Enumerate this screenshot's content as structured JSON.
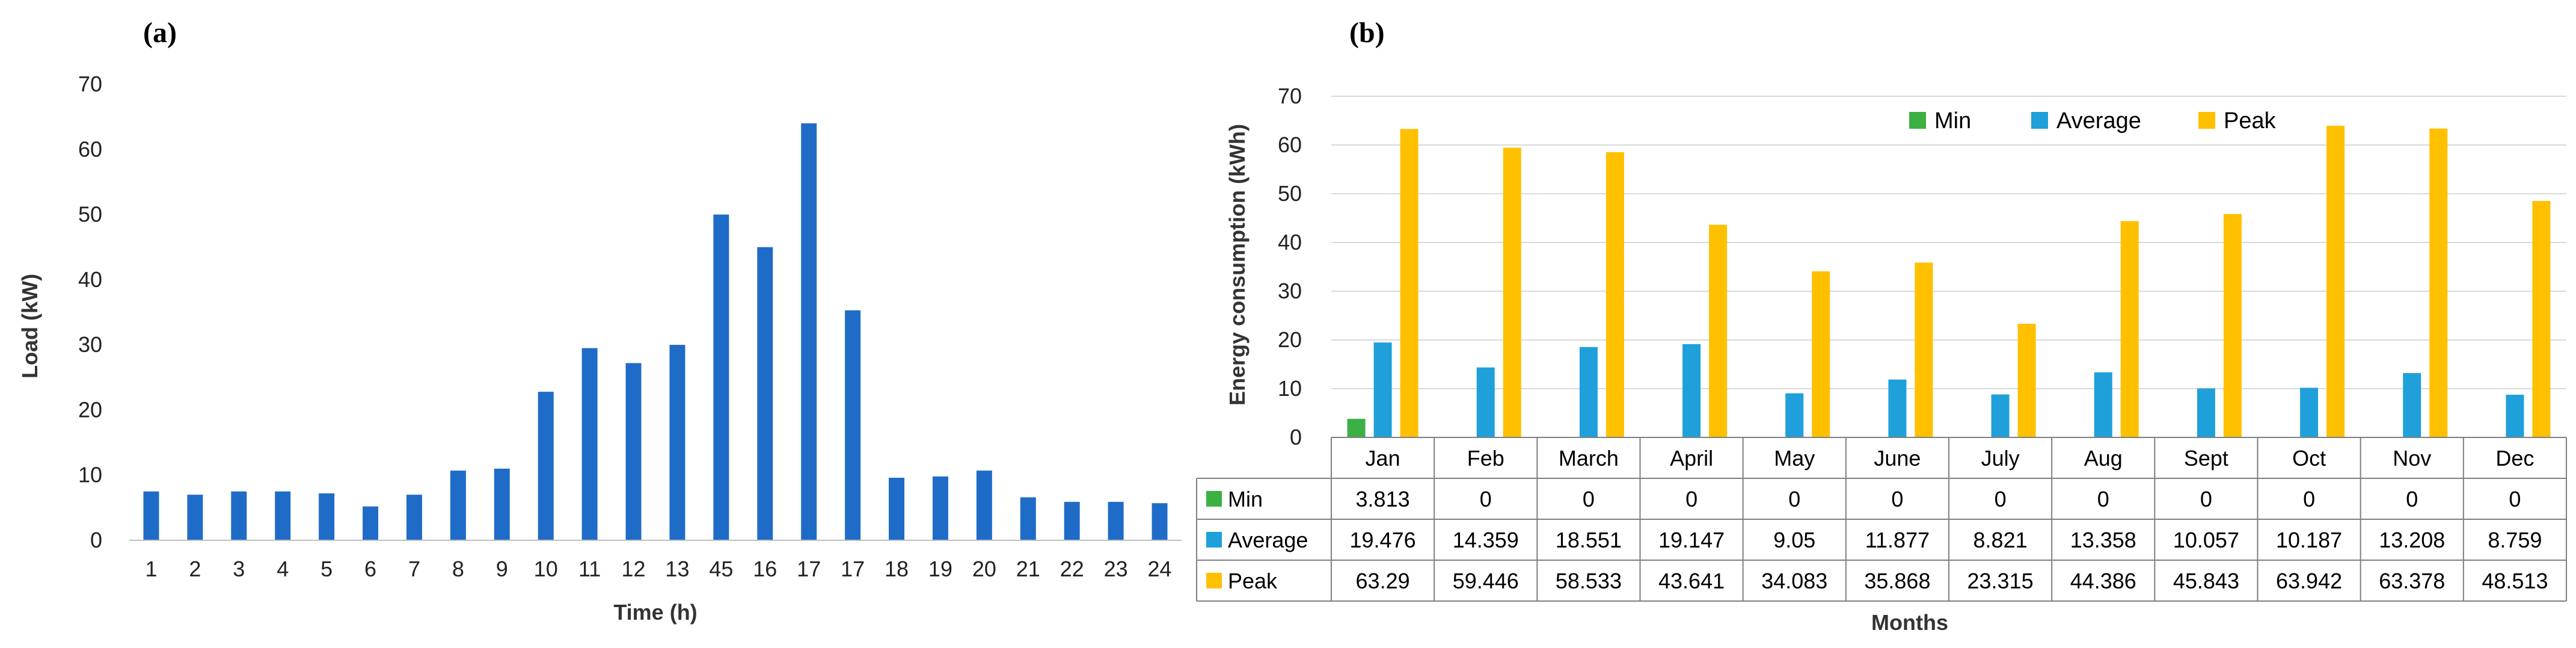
{
  "chart_data": [
    {
      "panel_label": "(a)",
      "type": "bar",
      "title": "",
      "xlabel": "Time (h)",
      "ylabel": "Load (kW)",
      "ylim": [
        0,
        70
      ],
      "yticks": [
        0,
        10,
        20,
        30,
        40,
        50,
        60,
        70
      ],
      "grid": false,
      "categories": [
        "1",
        "2",
        "3",
        "4",
        "5",
        "6",
        "7",
        "8",
        "9",
        "10",
        "11",
        "12",
        "13",
        "45",
        "16",
        "17",
        "17",
        "18",
        "19",
        "20",
        "21",
        "22",
        "23",
        "24"
      ],
      "values": [
        7.5,
        7,
        7.5,
        7.5,
        7.2,
        5.2,
        7,
        10.7,
        11,
        22.8,
        29.5,
        27.2,
        30,
        50,
        45,
        64,
        35.3,
        9.6,
        9.8,
        10.7,
        6.6,
        5.9,
        5.9,
        5.7
      ],
      "color": "#1f6cc8"
    },
    {
      "panel_label": "(b)",
      "type": "bar",
      "title": "",
      "xlabel": "Months",
      "ylabel": "Energy consumption (kWh)",
      "ylim": [
        0,
        70
      ],
      "yticks": [
        0,
        10,
        20,
        30,
        40,
        50,
        60,
        70
      ],
      "grid": true,
      "legend_position": "top-center",
      "categories": [
        "Jan",
        "Feb",
        "March",
        "April",
        "May",
        "June",
        "July",
        "Aug",
        "Sept",
        "Oct",
        "Nov",
        "Dec"
      ],
      "series": [
        {
          "name": "Min",
          "color": "#3cb043",
          "values": [
            3.813,
            0,
            0,
            0,
            0,
            0,
            0,
            0,
            0,
            0,
            0,
            0
          ],
          "labels": [
            "3.813",
            "0",
            "0",
            "0",
            "0",
            "0",
            "0",
            "0",
            "0",
            "0",
            "0",
            "0"
          ]
        },
        {
          "name": "Average",
          "color": "#1fa0da",
          "values": [
            19.476,
            14.359,
            18.551,
            19.147,
            9.05,
            11.877,
            8.821,
            13.358,
            10.057,
            10.187,
            13.208,
            8.759
          ],
          "labels": [
            "19.476",
            "14.359",
            "18.551",
            "19.147",
            "9.05",
            "11.877",
            "8.821",
            "13.358",
            "10.057",
            "10.187",
            "13.208",
            "8.759"
          ]
        },
        {
          "name": "Peak",
          "color": "#ffc000",
          "values": [
            63.29,
            59.446,
            58.533,
            43.641,
            34.083,
            35.868,
            23.315,
            44.386,
            45.843,
            63.942,
            63.378,
            48.513
          ],
          "labels": [
            "63.29",
            "59.446",
            "58.533",
            "43.641",
            "34.083",
            "35.868",
            "23.315",
            "44.386",
            "45.843",
            "63.942",
            "63.378",
            "48.513"
          ]
        }
      ]
    }
  ]
}
